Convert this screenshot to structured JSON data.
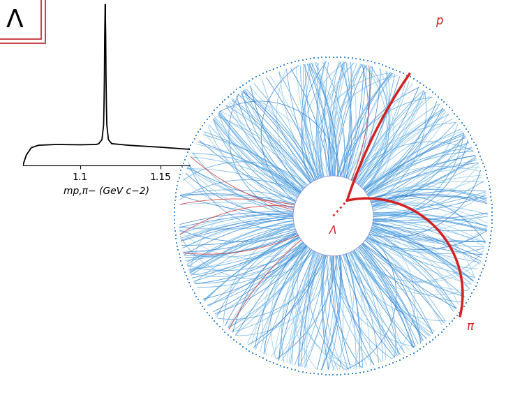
{
  "chart_data": {
    "type": "line",
    "title": "Λ",
    "xlabel": "mp,π− (GeV c−2)",
    "x": [
      1.0643,
      1.0665,
      1.0696,
      1.074,
      1.085,
      1.1,
      1.11,
      1.1115,
      1.1135,
      1.1145,
      1.1148,
      1.115,
      1.1152,
      1.1155,
      1.1158,
      1.116,
      1.1162,
      1.1165,
      1.1175,
      1.1195,
      1.13,
      1.15,
      1.168
    ],
    "values": [
      0,
      0.065,
      0.11,
      0.125,
      0.13,
      0.128,
      0.13,
      0.135,
      0.16,
      0.25,
      0.4,
      0.55,
      0.8,
      0.99,
      0.8,
      0.55,
      0.4,
      0.25,
      0.16,
      0.135,
      0.125,
      0.113,
      0.1
    ],
    "color": "#000000",
    "xlim": [
      1.0643,
      1.168
    ],
    "xticks": [
      1.1,
      1.15
    ],
    "ylim": [
      0,
      1
    ],
    "yticks": [],
    "tick_labels": "x"
  },
  "event_display": {
    "decay": "Λ",
    "daughters": [
      "p",
      "π"
    ]
  }
}
